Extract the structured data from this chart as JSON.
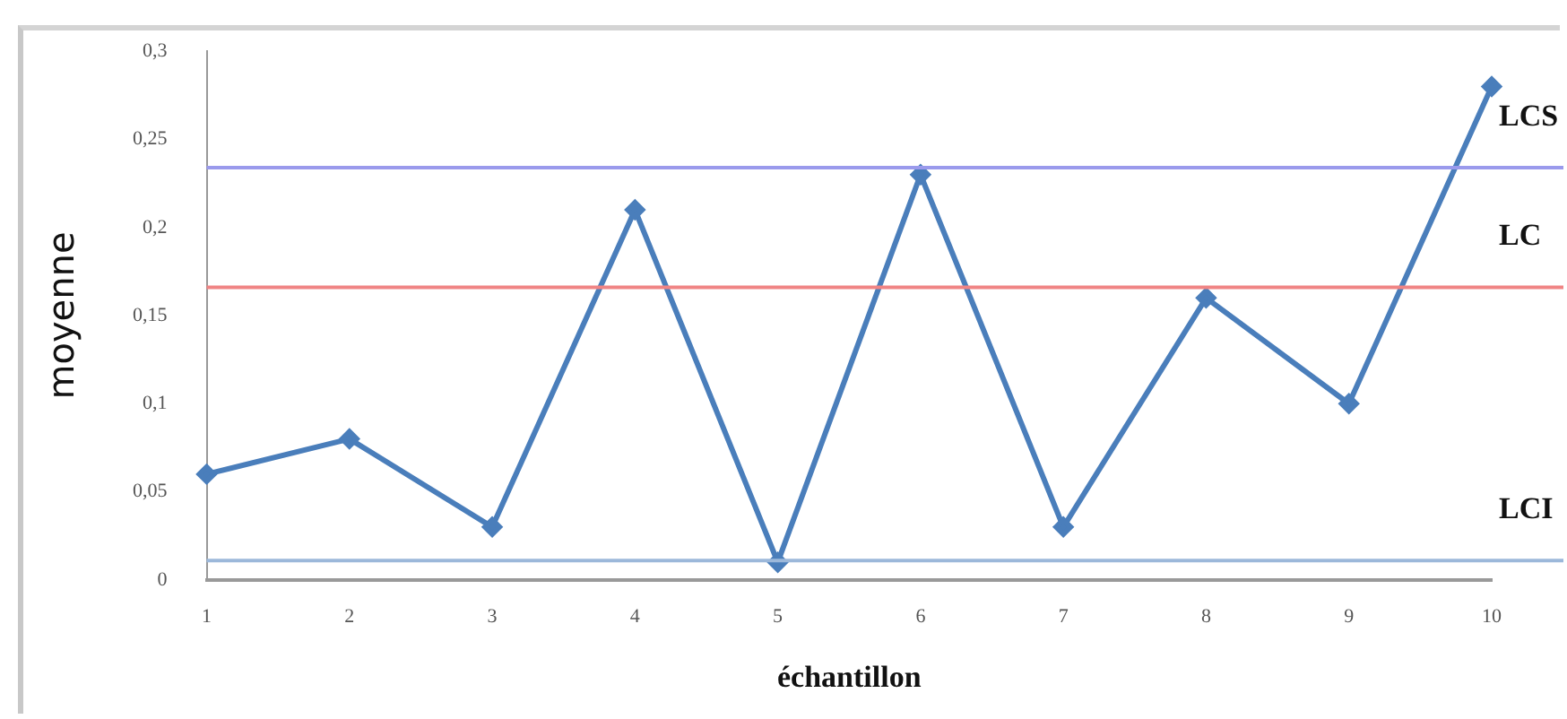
{
  "chart_data": {
    "type": "line",
    "xlabel": "échantillon",
    "ylabel": "moyenne",
    "categories": [
      "1",
      "2",
      "3",
      "4",
      "5",
      "6",
      "7",
      "8",
      "9",
      "10"
    ],
    "series": [
      {
        "color": "#4a7ebb",
        "values": [
          0.06,
          0.08,
          0.03,
          0.21,
          0.01,
          0.23,
          0.03,
          0.16,
          0.1,
          0.28
        ]
      }
    ],
    "ylim": [
      0,
      0.3
    ],
    "yticks": [
      {
        "value": 0,
        "label": "0"
      },
      {
        "value": 0.05,
        "label": "0,05"
      },
      {
        "value": 0.1,
        "label": "0,1"
      },
      {
        "value": 0.15,
        "label": "0,15"
      },
      {
        "value": 0.2,
        "label": "0,2"
      },
      {
        "value": 0.25,
        "label": "0,25"
      },
      {
        "value": 0.3,
        "label": "0,3"
      }
    ],
    "ref_lines": [
      {
        "axis": "y",
        "value": 0.234,
        "label": "LCS",
        "color": "#9a9aec"
      },
      {
        "axis": "y",
        "value": 0.166,
        "label": "LC",
        "color": "#f08484"
      },
      {
        "axis": "y",
        "value": 0.011,
        "label": "LCI",
        "color": "#9cb8da"
      }
    ],
    "grid": false,
    "legend": false,
    "marker": "diamond",
    "line_style": "solid"
  }
}
